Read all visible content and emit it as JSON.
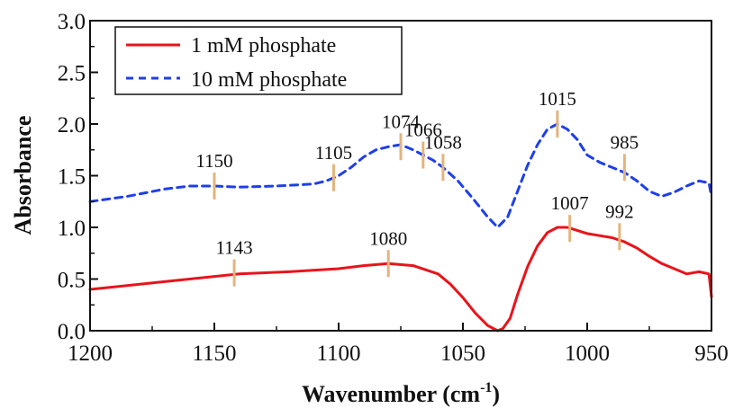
{
  "chart_data": {
    "type": "line",
    "title": "",
    "xlabel": "Wavenumber (cm",
    "xlabel_sup": "-1",
    "xlabel_close": ")",
    "ylabel": "Absorbance",
    "xlim": [
      1200,
      950
    ],
    "ylim": [
      0.0,
      3.0
    ],
    "x_reversed": true,
    "x_ticks": [
      1200,
      1150,
      1100,
      1050,
      1000,
      950
    ],
    "x_tick_labels": [
      "1200",
      "1150",
      "1100",
      "1050",
      "1000",
      "950"
    ],
    "y_ticks": [
      0.0,
      0.5,
      1.0,
      1.5,
      2.0,
      2.5,
      3.0
    ],
    "y_tick_labels": [
      "0.0",
      "0.5",
      "1.0",
      "1.5",
      "2.0",
      "2.5",
      "3.0"
    ],
    "grid": false,
    "legend_position": "top-left",
    "marker_color": "#e3b47c",
    "series": [
      {
        "name": "1 mM phosphate",
        "color": "#e8141b",
        "style": "solid",
        "x": [
          1200,
          1180,
          1160,
          1140,
          1120,
          1100,
          1090,
          1080,
          1070,
          1060,
          1055,
          1050,
          1045,
          1040,
          1036,
          1034,
          1031,
          1028,
          1024,
          1020,
          1016,
          1012,
          1008,
          1004,
          1000,
          995,
          990,
          985,
          980,
          975,
          970,
          965,
          960,
          955,
          951,
          950
        ],
        "y": [
          0.4,
          0.45,
          0.5,
          0.55,
          0.57,
          0.6,
          0.63,
          0.65,
          0.63,
          0.55,
          0.45,
          0.32,
          0.17,
          0.05,
          0.0,
          0.02,
          0.12,
          0.35,
          0.62,
          0.82,
          0.95,
          1.0,
          1.0,
          0.97,
          0.94,
          0.92,
          0.9,
          0.86,
          0.8,
          0.72,
          0.65,
          0.6,
          0.55,
          0.57,
          0.55,
          0.33
        ]
      },
      {
        "name": "10 mM phosphate",
        "color": "#1f3fe8",
        "style": "dashed",
        "x": [
          1200,
          1185,
          1170,
          1160,
          1150,
          1140,
          1125,
          1110,
          1105,
          1100,
          1095,
          1090,
          1085,
          1080,
          1075,
          1070,
          1066,
          1062,
          1058,
          1052,
          1046,
          1040,
          1036,
          1032,
          1028,
          1024,
          1020,
          1016,
          1012,
          1008,
          1004,
          1000,
          995,
          990,
          985,
          980,
          975,
          970,
          965,
          960,
          955,
          951,
          950
        ],
        "y": [
          1.25,
          1.3,
          1.37,
          1.4,
          1.4,
          1.39,
          1.4,
          1.42,
          1.45,
          1.5,
          1.58,
          1.68,
          1.75,
          1.78,
          1.8,
          1.75,
          1.7,
          1.65,
          1.58,
          1.45,
          1.28,
          1.1,
          1.0,
          1.1,
          1.35,
          1.6,
          1.8,
          1.95,
          2.0,
          1.95,
          1.85,
          1.7,
          1.63,
          1.58,
          1.53,
          1.45,
          1.35,
          1.3,
          1.34,
          1.4,
          1.45,
          1.43,
          1.3
        ]
      }
    ],
    "annotations": [
      {
        "label": "1150",
        "x": 1150,
        "y": 1.4
      },
      {
        "label": "1105",
        "x": 1102,
        "y": 1.48
      },
      {
        "label": "1074",
        "x": 1075,
        "y": 1.78
      },
      {
        "label": "1066",
        "x": 1066,
        "y": 1.7
      },
      {
        "label": "1058",
        "x": 1058,
        "y": 1.58
      },
      {
        "label": "1015",
        "x": 1012,
        "y": 2.0
      },
      {
        "label": "985",
        "x": 985,
        "y": 1.58
      },
      {
        "label": "1143",
        "x": 1142,
        "y": 0.56
      },
      {
        "label": "1080",
        "x": 1080,
        "y": 0.65
      },
      {
        "label": "1007",
        "x": 1007,
        "y": 0.99
      },
      {
        "label": "992",
        "x": 987,
        "y": 0.91
      }
    ]
  }
}
